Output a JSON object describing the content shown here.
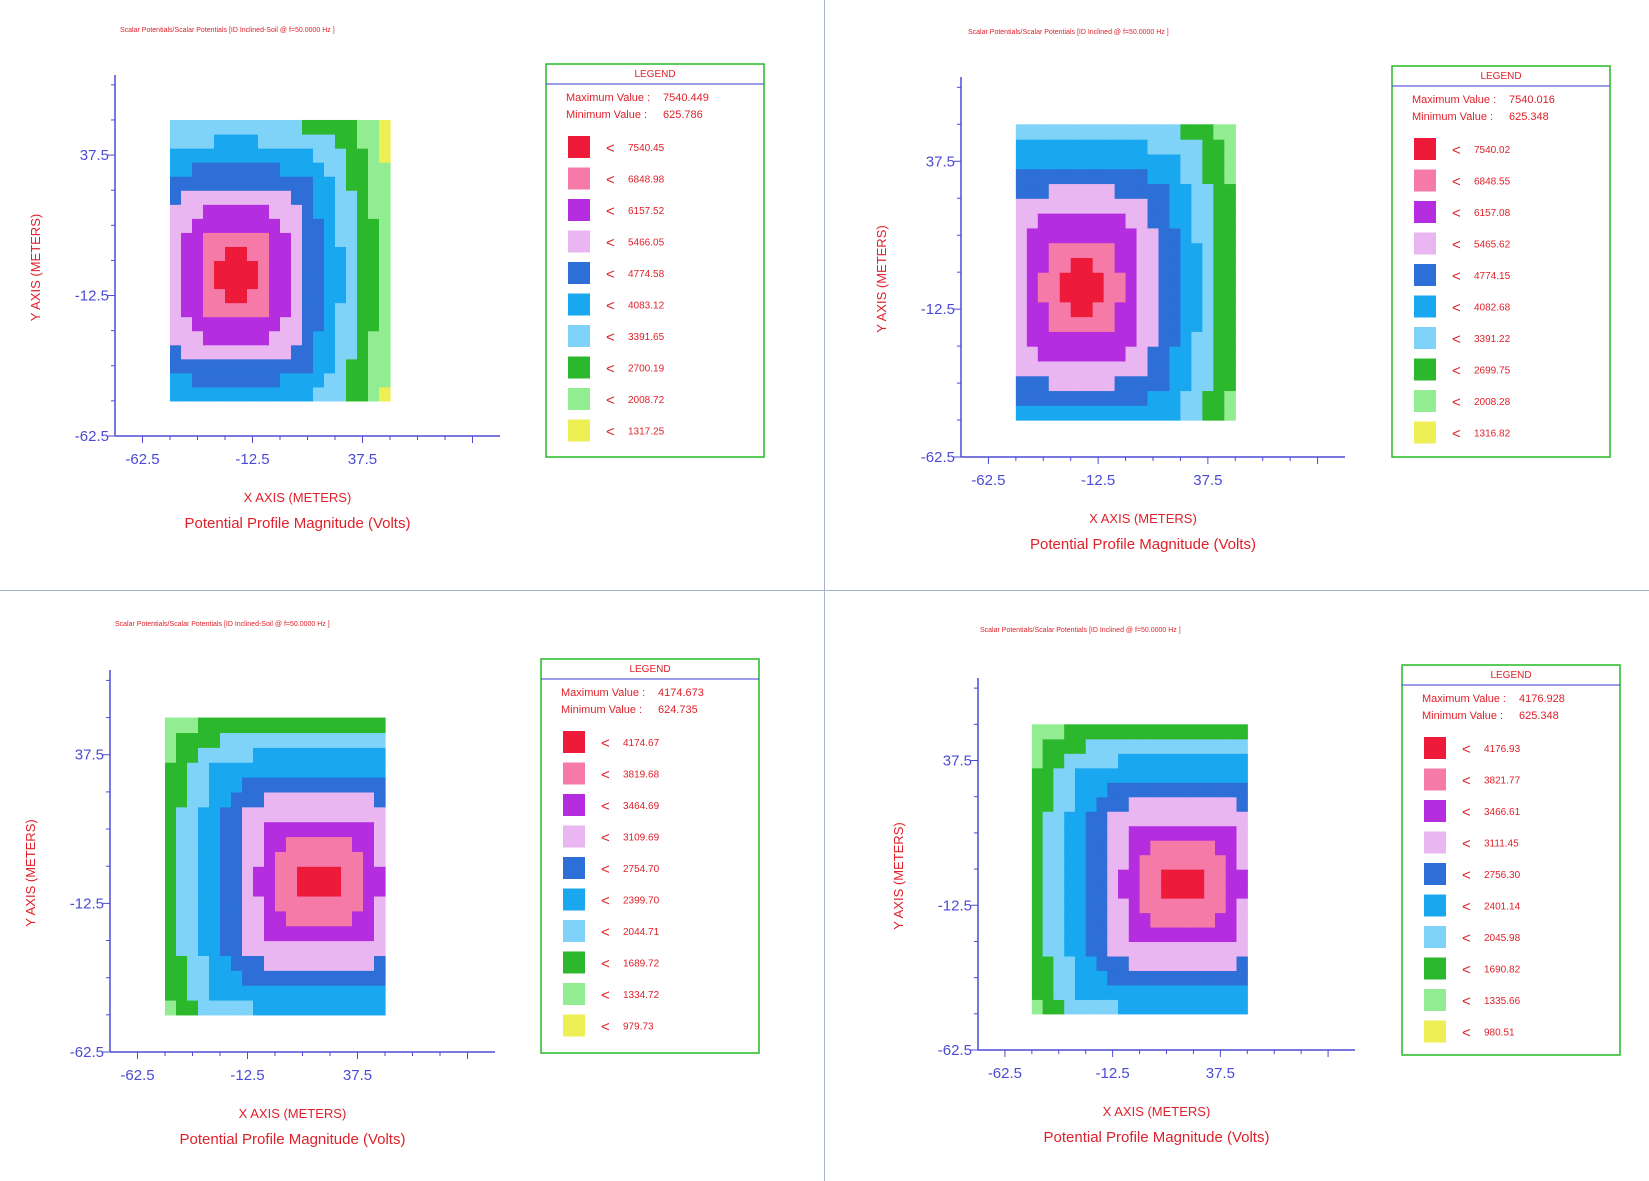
{
  "colors": {
    "axis": "#4b4bd6",
    "text_red": "#e0202a",
    "legend_border": "#22bb22",
    "legend_rule": "#3a3ad0",
    "level_colors": [
      "#ee1a3a",
      "#f57aa8",
      "#b42ee0",
      "#e9b6f2",
      "#2d6fd6",
      "#19a8ef",
      "#7fd3f8",
      "#2cb82c",
      "#92ec92",
      "#eeee55"
    ]
  },
  "chart_data": [
    {
      "type": "heatmap",
      "title": "Scalar Potentials/Scalar Potentials [ID Inclined-Soil  @ f=50.0000 Hz ]",
      "xlabel": "X AXIS  (METERS)",
      "ylabel": "Y AXIS  (METERS)",
      "caption": "Potential Profile Magnitude (Volts)",
      "x_ticks": [
        "-62.5",
        "-12.5",
        "37.5"
      ],
      "y_ticks": [
        "37.5",
        "-12.5",
        "-62.5"
      ],
      "xlim": [
        -75,
        100
      ],
      "ylim": [
        -62.5,
        66
      ],
      "grid": false,
      "legend_title": "LEGEND",
      "max_label": "Maximum Value :",
      "max_value": "7540.449",
      "min_label": "Minimum Value :",
      "min_value": "625.786",
      "levels": [
        "7540.45",
        "6848.98",
        "6157.52",
        "5466.05",
        "4774.58",
        "4083.12",
        "3391.65",
        "2700.19",
        "2008.72",
        "1317.25"
      ],
      "grid_extent": {
        "x": [
          -50,
          50
        ],
        "y": [
          -50,
          50
        ]
      },
      "cells": 20,
      "peak": {
        "x": -20,
        "y": -5
      },
      "scale": {
        "sx": 1.0,
        "sy": 1.0
      },
      "level_width": 8
    },
    {
      "type": "heatmap",
      "title": "Scalar Potentials/Scalar Potentials [ID Inclined  @ f=50.0000 Hz ]",
      "xlabel": "X AXIS  (METERS)",
      "ylabel": "Y AXIS  (METERS)",
      "caption": "Potential Profile Magnitude (Volts)",
      "x_ticks": [
        "-62.5",
        "-12.5",
        "37.5"
      ],
      "y_ticks": [
        "37.5",
        "-12.5",
        "-62.5"
      ],
      "xlim": [
        -75,
        100
      ],
      "ylim": [
        -62.5,
        66
      ],
      "grid": false,
      "legend_title": "LEGEND",
      "max_label": "Maximum Value :",
      "max_value": "7540.016",
      "min_label": "Minimum Value :",
      "min_value": "625.348",
      "levels": [
        "7540.02",
        "6848.55",
        "6157.08",
        "5465.62",
        "4774.15",
        "4082.68",
        "3391.22",
        "2699.75",
        "2008.28",
        "1316.82"
      ],
      "grid_extent": {
        "x": [
          -50,
          50
        ],
        "y": [
          -50,
          50
        ]
      },
      "cells": 20,
      "peak": {
        "x": -20,
        "y": -5
      },
      "scale": {
        "sx": 1.05,
        "sy": 1.0
      },
      "level_width": 8.5
    },
    {
      "type": "heatmap",
      "title": "Scalar Potentials/Scalar Potentials [ID Inclined-Soil  @ f=50.0000 Hz ]",
      "xlabel": "X AXIS  (METERS)",
      "ylabel": "Y AXIS  (METERS)",
      "caption": "Potential Profile Magnitude (Volts)",
      "x_ticks": [
        "-62.5",
        "-12.5",
        "37.5"
      ],
      "y_ticks": [
        "37.5",
        "-12.5",
        "-62.5"
      ],
      "xlim": [
        -75,
        100
      ],
      "ylim": [
        -62.5,
        66
      ],
      "grid": false,
      "legend_title": "LEGEND",
      "max_label": "Maximum Value :",
      "max_value": "4174.673",
      "min_label": "Minimum Value :",
      "min_value": "624.735",
      "levels": [
        "4174.67",
        "3819.68",
        "3464.69",
        "3109.69",
        "2754.70",
        "2399.70",
        "2044.71",
        "1689.72",
        "1334.72",
        "979.73"
      ],
      "grid_extent": {
        "x": [
          -50,
          50
        ],
        "y": [
          -50,
          50
        ]
      },
      "cells": 20,
      "peak": {
        "x": 20,
        "y": -5
      },
      "scale": {
        "sx": 1.25,
        "sy": 1.0
      },
      "level_width": 7.5
    },
    {
      "type": "heatmap",
      "title": "Scalar Potentials/Scalar Potentials [ID Inclined  @ f=50.0000 Hz ]",
      "xlabel": "X AXIS  (METERS)",
      "ylabel": "Y AXIS  (METERS)",
      "caption": "Potential Profile Magnitude (Volts)",
      "x_ticks": [
        "-62.5",
        "-12.5",
        "37.5"
      ],
      "y_ticks": [
        "37.5",
        "-12.5",
        "-62.5"
      ],
      "xlim": [
        -75,
        100
      ],
      "ylim": [
        -62.5,
        66
      ],
      "grid": false,
      "legend_title": "LEGEND",
      "max_label": "Maximum Value :",
      "max_value": "4176.928",
      "min_label": "Minimum Value :",
      "min_value": "625.348",
      "levels": [
        "4176.93",
        "3821.77",
        "3466.61",
        "3111.45",
        "2756.30",
        "2401.14",
        "2045.98",
        "1690.82",
        "1335.66",
        "980.51"
      ],
      "grid_extent": {
        "x": [
          -50,
          50
        ],
        "y": [
          -50,
          50
        ]
      },
      "cells": 20,
      "peak": {
        "x": 20,
        "y": -5
      },
      "scale": {
        "sx": 1.25,
        "sy": 1.0
      },
      "level_width": 7.5
    }
  ]
}
